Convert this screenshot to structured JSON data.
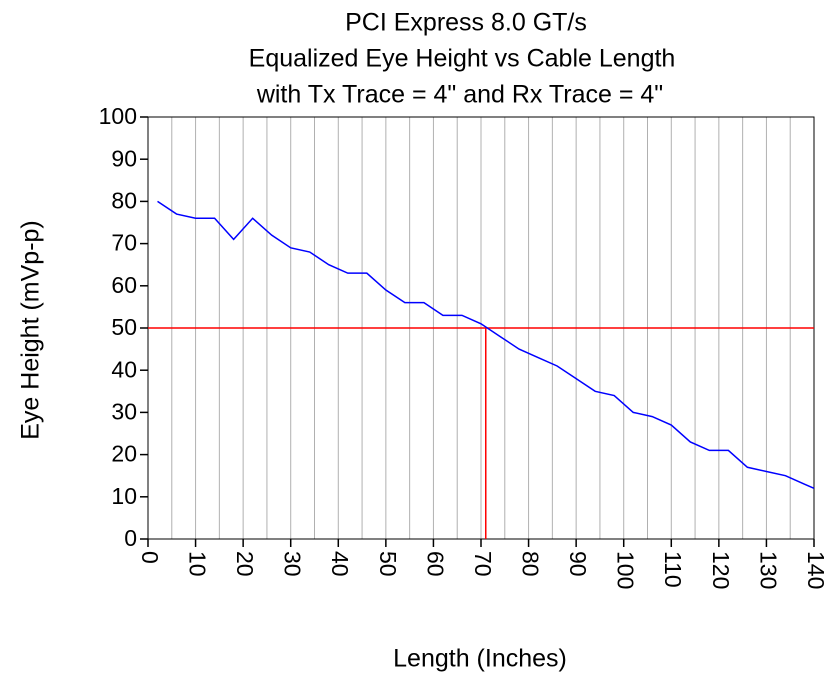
{
  "chart_data": {
    "type": "line",
    "title": [
      "PCI Express 8.0 GT/s",
      "Equalized Eye Height vs Cable Length",
      "with Tx Trace = 4\" and Rx Trace = 4\""
    ],
    "x_label": "Length (Inches)",
    "y_label": "Eye Height (mVp-p)",
    "x": [
      2,
      6,
      10,
      14,
      18,
      22,
      26,
      30,
      34,
      38,
      42,
      46,
      50,
      54,
      58,
      62,
      66,
      70,
      74,
      78,
      82,
      86,
      90,
      94,
      98,
      102,
      106,
      110,
      114,
      118,
      122,
      126,
      130,
      134,
      138,
      140
    ],
    "series": [
      {
        "color": "#0000ff",
        "values": [
          80,
          77,
          76,
          76,
          71,
          76,
          72,
          69,
          68,
          65,
          63,
          63,
          59,
          56,
          56,
          53,
          53,
          51,
          48,
          45,
          43,
          41,
          38,
          35,
          34,
          30,
          29,
          27,
          23,
          21,
          21,
          17,
          16,
          15,
          13,
          12
        ]
      }
    ],
    "xlim": [
      0,
      140
    ],
    "ylim": [
      0,
      100
    ],
    "xticks": [
      0,
      10,
      20,
      30,
      40,
      50,
      60,
      70,
      80,
      90,
      100,
      110,
      120,
      130,
      140
    ],
    "yticks": [
      0,
      10,
      20,
      30,
      40,
      50,
      60,
      70,
      80,
      90,
      100
    ],
    "x_grid_lines": [
      5,
      10,
      15,
      20,
      25,
      30,
      35,
      40,
      45,
      50,
      55,
      60,
      65,
      70,
      75,
      80,
      85,
      90,
      95,
      100,
      105,
      110,
      115,
      120,
      125,
      130,
      135
    ],
    "grid_color": "#b0b0b0",
    "threshold": {
      "y": 50,
      "x": 71,
      "color": "#ff0000"
    }
  }
}
